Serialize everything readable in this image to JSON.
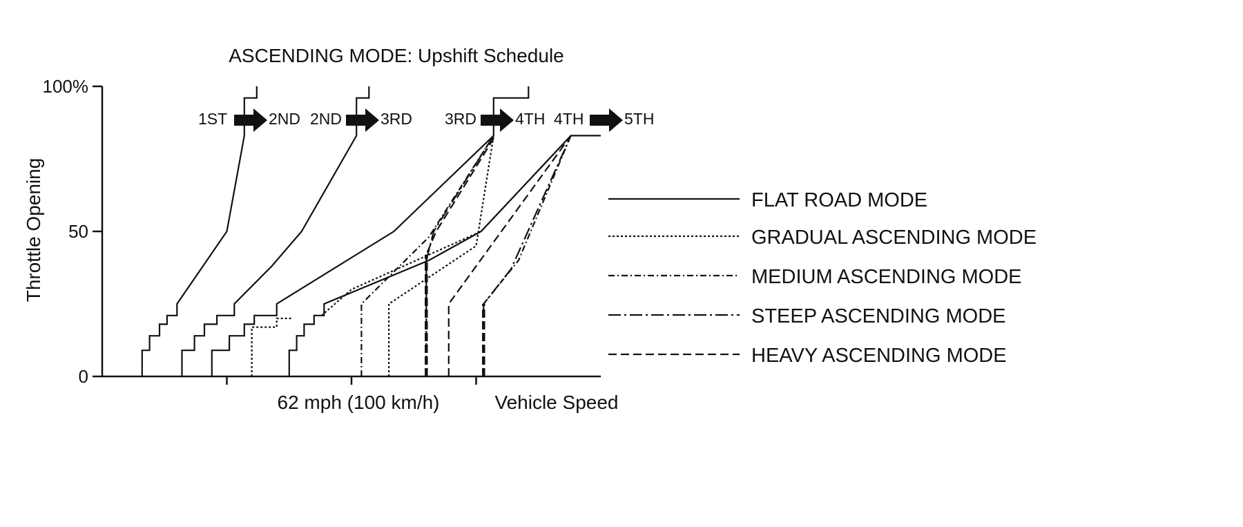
{
  "chart_data": {
    "type": "line",
    "title": "ASCENDING MODE: Upshift Schedule",
    "ylabel": "Throttle Opening",
    "xlabel": "Vehicle Speed",
    "x_marker_label": "62 mph (100 km/h)",
    "ylim": [
      0,
      100
    ],
    "xlim": [
      0,
      200
    ],
    "y_ticks": [
      "0",
      "50",
      "100%"
    ],
    "y_tick_values": [
      0,
      50,
      100
    ],
    "x_tick_values": [
      50,
      100,
      150
    ],
    "x_marker_value": 100,
    "shift_labels": [
      {
        "from": "1ST",
        "to": "2ND"
      },
      {
        "from": "2ND",
        "to": "3RD"
      },
      {
        "from": "3RD",
        "to": "4TH"
      },
      {
        "from": "4TH",
        "to": "5TH"
      }
    ],
    "legend": [
      {
        "name": "FLAT ROAD MODE",
        "style": "solid"
      },
      {
        "name": "GRADUAL ASCENDING MODE",
        "style": "dotted"
      },
      {
        "name": "MEDIUM ASCENDING MODE",
        "style": "dashdot"
      },
      {
        "name": "STEEP ASCENDING MODE",
        "style": "longdashdot"
      },
      {
        "name": "HEAVY ASCENDING MODE",
        "style": "dashed"
      }
    ],
    "series": [
      {
        "name": "1-2 upshift (flat road)",
        "style": "solid",
        "points": [
          [
            16,
            0
          ],
          [
            16,
            9
          ],
          [
            19,
            9
          ],
          [
            19,
            14
          ],
          [
            23,
            14
          ],
          [
            23,
            18
          ],
          [
            26,
            18
          ],
          [
            26,
            21
          ],
          [
            30,
            21
          ],
          [
            30,
            25
          ],
          [
            50,
            50
          ],
          [
            57,
            83
          ],
          [
            57,
            96
          ],
          [
            62,
            96
          ],
          [
            62,
            100
          ]
        ]
      },
      {
        "name": "2-3 upshift (flat road)",
        "style": "solid",
        "points": [
          [
            32,
            0
          ],
          [
            32,
            9
          ],
          [
            37,
            9
          ],
          [
            37,
            14
          ],
          [
            41,
            14
          ],
          [
            41,
            18
          ],
          [
            46,
            18
          ],
          [
            46,
            21
          ],
          [
            53,
            21
          ],
          [
            53,
            25
          ],
          [
            68,
            38
          ],
          [
            80,
            50
          ],
          [
            102,
            83
          ],
          [
            102,
            96
          ],
          [
            107,
            96
          ],
          [
            107,
            100
          ]
        ]
      },
      {
        "name": "3-4 upshift (flat road)",
        "style": "solid",
        "points": [
          [
            44,
            0
          ],
          [
            44,
            9
          ],
          [
            51,
            9
          ],
          [
            51,
            14
          ],
          [
            57,
            14
          ],
          [
            57,
            18
          ],
          [
            61,
            18
          ],
          [
            61,
            21
          ],
          [
            70,
            21
          ],
          [
            70,
            25
          ],
          [
            117,
            50
          ],
          [
            157,
            83
          ],
          [
            157,
            96
          ],
          [
            171,
            96
          ],
          [
            171,
            100
          ]
        ]
      },
      {
        "name": "3-4 upshift (gradual)",
        "style": "dotted",
        "points": [
          [
            60,
            0
          ],
          [
            60,
            17
          ],
          [
            70,
            17
          ],
          [
            70,
            20
          ],
          [
            76,
            20
          ]
        ]
      },
      {
        "name": "4-5 upshift (flat road)",
        "style": "solid",
        "points": [
          [
            75,
            0
          ],
          [
            75,
            9
          ],
          [
            78,
            9
          ],
          [
            78,
            14
          ],
          [
            81,
            14
          ],
          [
            81,
            18
          ],
          [
            85,
            18
          ],
          [
            85,
            21
          ],
          [
            89,
            21
          ],
          [
            89,
            25
          ],
          [
            131,
            40
          ],
          [
            152,
            50
          ],
          [
            188,
            83
          ],
          [
            200,
            83
          ]
        ]
      },
      {
        "name": "3-4 upshift (gradual ascending)",
        "style": "dotted",
        "points": [
          [
            115,
            0
          ],
          [
            115,
            25
          ],
          [
            150,
            45
          ],
          [
            157,
            83
          ]
        ]
      },
      {
        "name": "3-4 upshift (medium ascending)",
        "style": "dashdot",
        "points": [
          [
            104,
            0
          ],
          [
            104,
            25
          ],
          [
            131,
            48
          ],
          [
            157,
            83
          ]
        ]
      },
      {
        "name": "3-4 upshift (steep ascending)",
        "style": "longdashdot",
        "points": [
          [
            130,
            40
          ],
          [
            133,
            50
          ],
          [
            157,
            83
          ]
        ]
      },
      {
        "name": "3-4 upshift (heavy ascending)",
        "style": "dashed",
        "points": [
          [
            130,
            0
          ],
          [
            130,
            42
          ],
          [
            134,
            50
          ],
          [
            157,
            82
          ]
        ]
      },
      {
        "name": "3-4 upshift (heavy ascending, boundary)",
        "style": "boldDashed",
        "points": [
          [
            130,
            0
          ],
          [
            130,
            42
          ]
        ]
      },
      {
        "name": "4-5 upshift (gradual ascending)",
        "style": "dotted",
        "points": [
          [
            88,
            21
          ],
          [
            100,
            30
          ],
          [
            152,
            50
          ],
          [
            188,
            83
          ]
        ]
      },
      {
        "name": "4-5 upshift (heavy ascending)",
        "style": "dashed",
        "points": [
          [
            139,
            0
          ],
          [
            139,
            25
          ],
          [
            188,
            83
          ]
        ]
      },
      {
        "name": "4-5 upshift (steep ascending)",
        "style": "longdashdot",
        "points": [
          [
            153,
            22
          ],
          [
            153,
            25
          ],
          [
            164,
            37
          ],
          [
            188,
            83
          ]
        ]
      },
      {
        "name": "4-5 upshift (medium ascending)",
        "style": "dashdot",
        "points": [
          [
            153,
            25
          ],
          [
            167,
            40
          ],
          [
            188,
            83
          ]
        ]
      },
      {
        "name": "4-5 upshift (heavy ascending, boundary)",
        "style": "boldDashed",
        "points": [
          [
            153,
            0
          ],
          [
            153,
            25
          ]
        ]
      }
    ]
  }
}
